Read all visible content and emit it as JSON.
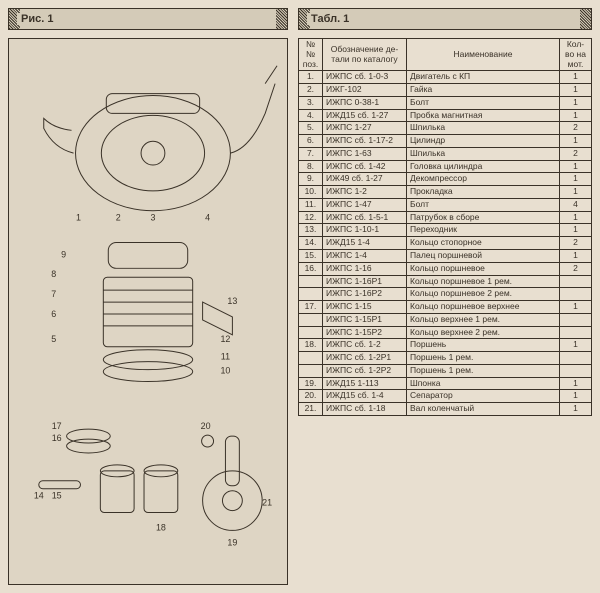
{
  "colors": {
    "paper": "#e8dfd0",
    "paper_alt": "#ded5c4",
    "ink": "#3a3228",
    "header_bg": "#d4cbb8"
  },
  "left": {
    "header": "Рис. 1",
    "figure_note": "Двигатель — разнесённый вид (иллюстрация)"
  },
  "right": {
    "header": "Табл. 1",
    "columns": {
      "num": "№№\nпоз.",
      "code": "Обозначение де-\nтали по каталогу",
      "name": "Наименование",
      "qty": "Кол-во\nна мот."
    },
    "rows": [
      {
        "n": "1.",
        "code": "ИЖПС сб. 1-0-3",
        "name": "Двигатель с КП",
        "qty": "1"
      },
      {
        "n": "2.",
        "code": "ИЖГ-102",
        "name": "Гайка",
        "qty": "1"
      },
      {
        "n": "3.",
        "code": "ИЖПС 0-38-1",
        "name": "Болт",
        "qty": "1"
      },
      {
        "n": "4.",
        "code": "ИЖД15 сб. 1-27",
        "name": "Пробка магнитная",
        "qty": "1"
      },
      {
        "n": "5.",
        "code": "ИЖПС 1-27",
        "name": "Шпилька",
        "qty": "2"
      },
      {
        "n": "6.",
        "code": "ИЖПС сб. 1-17-2",
        "name": "Цилиндр",
        "qty": "1"
      },
      {
        "n": "7.",
        "code": "ИЖПС 1-63",
        "name": "Шпилька",
        "qty": "2"
      },
      {
        "n": "8.",
        "code": "ИЖПС сб. 1-42",
        "name": "Головка цилиндра",
        "qty": "1"
      },
      {
        "n": "9.",
        "code": "ИЖ49 сб. 1-27",
        "name": "Декомпрессор",
        "qty": "1"
      },
      {
        "n": "10.",
        "code": "ИЖПС 1-2",
        "name": "Прокладка",
        "qty": "1"
      },
      {
        "n": "11.",
        "code": "ИЖПС 1-47",
        "name": "Болт",
        "qty": "4"
      },
      {
        "n": "12.",
        "code": "ИЖПС сб. 1-5-1",
        "name": "Патрубок в сборе",
        "qty": "1"
      },
      {
        "n": "13.",
        "code": "ИЖПС 1-10-1",
        "name": "Переходник",
        "qty": "1"
      },
      {
        "n": "14.",
        "code": "ИЖД15 1-4",
        "name": "Кольцо стопорное",
        "qty": "2"
      },
      {
        "n": "15.",
        "code": "ИЖПС 1-4",
        "name": "Палец поршневой",
        "qty": "1"
      },
      {
        "n": "16.",
        "code": "ИЖПС 1-16",
        "name": "Кольцо поршневое",
        "qty": "2"
      },
      {
        "n": "",
        "code": "ИЖПС 1-16Р1",
        "name": "Кольцо поршневое 1 рем.",
        "qty": ""
      },
      {
        "n": "",
        "code": "ИЖПС 1-16Р2",
        "name": "Кольцо поршневое 2 рем.",
        "qty": ""
      },
      {
        "n": "17.",
        "code": "ИЖПС 1-15",
        "name": "Кольцо поршневое верхнее",
        "qty": "1"
      },
      {
        "n": "",
        "code": "ИЖПС 1-15Р1",
        "name": "Кольцо верхнее 1 рем.",
        "qty": ""
      },
      {
        "n": "",
        "code": "ИЖПС 1-15Р2",
        "name": "Кольцо верхнее 2 рем.",
        "qty": ""
      },
      {
        "n": "18.",
        "code": "ИЖПС сб. 1-2",
        "name": "Поршень",
        "qty": "1"
      },
      {
        "n": "",
        "code": "ИЖПС сб. 1-2Р1",
        "name": "Поршень 1 рем.",
        "qty": ""
      },
      {
        "n": "",
        "code": "ИЖПС сб. 1-2Р2",
        "name": "Поршень 1 рем.",
        "qty": ""
      },
      {
        "n": "19.",
        "code": "ИЖД15 1-113",
        "name": "Шпонка",
        "qty": "1"
      },
      {
        "n": "20.",
        "code": "ИЖД15 сб. 1-4",
        "name": "Сепаратор",
        "qty": "1"
      },
      {
        "n": "21.",
        "code": "ИЖПС сб. 1-18",
        "name": "Вал коленчатый",
        "qty": "1"
      }
    ]
  },
  "figure_labels": [
    "1",
    "2",
    "3",
    "4",
    "5",
    "6",
    "7",
    "8",
    "9",
    "10",
    "11",
    "12",
    "13",
    "14",
    "15",
    "16",
    "17",
    "18",
    "19",
    "20",
    "21"
  ]
}
